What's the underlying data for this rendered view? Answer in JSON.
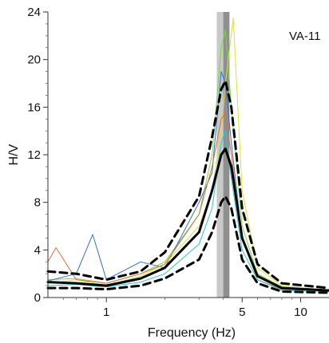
{
  "chart_data": {
    "type": "line",
    "xlabel": "Frequency (Hz)",
    "ylabel": "H/V",
    "annotation": "VA-11",
    "x_scale": "log",
    "xlim": [
      0.5,
      14
    ],
    "ylim": [
      0,
      24
    ],
    "x_ticks": [
      {
        "value": 1,
        "label": "1"
      },
      {
        "value": 5,
        "label": "5"
      },
      {
        "value": 10,
        "label": "10"
      }
    ],
    "y_ticks": [
      {
        "value": 0,
        "label": "0"
      },
      {
        "value": 4,
        "label": "4"
      },
      {
        "value": 8,
        "label": "8"
      },
      {
        "value": 12,
        "label": "12"
      },
      {
        "value": 16,
        "label": "16"
      },
      {
        "value": 20,
        "label": "20"
      },
      {
        "value": 24,
        "label": "24"
      }
    ],
    "grid": false,
    "peak_band": {
      "f0_range": [
        3.7,
        4.3
      ],
      "f0_core": [
        4.0,
        4.3
      ]
    },
    "series": [
      {
        "color": "#000000",
        "style": "solid",
        "width": 3,
        "x": [
          0.5,
          0.7,
          1.0,
          1.5,
          2.0,
          3.0,
          3.5,
          3.9,
          4.1,
          4.4,
          5.0,
          6.0,
          8.0,
          14.0
        ],
        "y": [
          1.3,
          1.2,
          1.0,
          1.6,
          2.5,
          5.5,
          9.0,
          12.0,
          12.5,
          11.0,
          5.0,
          1.8,
          0.8,
          0.6
        ]
      },
      {
        "color": "#000000",
        "style": "dashed",
        "width": 3,
        "x": [
          0.5,
          0.7,
          1.0,
          1.5,
          2.0,
          3.0,
          3.5,
          3.9,
          4.1,
          4.4,
          5.0,
          6.0,
          8.0,
          14.0
        ],
        "y": [
          2.2,
          2.0,
          1.5,
          2.2,
          3.8,
          8.5,
          13.5,
          17.5,
          18.2,
          16.0,
          7.5,
          2.8,
          1.2,
          0.8
        ]
      },
      {
        "color": "#000000",
        "style": "dashed",
        "width": 3,
        "x": [
          0.5,
          0.7,
          1.0,
          1.5,
          2.0,
          3.0,
          3.5,
          3.9,
          4.1,
          4.4,
          5.0,
          6.0,
          8.0,
          14.0
        ],
        "y": [
          0.8,
          0.8,
          0.7,
          1.0,
          1.6,
          3.2,
          5.5,
          8.0,
          8.5,
          7.5,
          3.2,
          1.2,
          0.5,
          0.4
        ]
      },
      {
        "color": "#76d93a",
        "style": "solid",
        "width": 1,
        "x": [
          0.5,
          0.7,
          1.0,
          1.5,
          2.0,
          3.0,
          3.5,
          3.9,
          4.1,
          4.4,
          5.0,
          6.0,
          8.0,
          14.0
        ],
        "y": [
          1.5,
          1.6,
          1.2,
          2.0,
          3.0,
          7.0,
          12.0,
          21.0,
          22.5,
          16.0,
          6.0,
          2.0,
          0.9,
          0.6
        ]
      },
      {
        "color": "#2f6fd6",
        "style": "solid",
        "width": 1,
        "x": [
          0.5,
          0.7,
          0.85,
          1.0,
          1.5,
          2.0,
          3.0,
          3.5,
          3.9,
          4.1,
          4.4,
          5.0,
          6.0,
          8.0,
          14.0
        ],
        "y": [
          1.4,
          2.0,
          5.3,
          1.5,
          3.0,
          2.5,
          8.0,
          10.5,
          19.0,
          18.0,
          13.0,
          5.0,
          1.8,
          0.8,
          0.5
        ]
      },
      {
        "color": "#d9e03a",
        "style": "solid",
        "width": 1,
        "x": [
          0.5,
          0.7,
          1.0,
          1.5,
          2.0,
          3.0,
          3.5,
          3.9,
          4.1,
          4.5,
          5.0,
          6.0,
          8.0,
          14.0
        ],
        "y": [
          1.2,
          1.5,
          1.0,
          1.8,
          2.8,
          6.0,
          9.0,
          14.0,
          18.0,
          23.5,
          9.0,
          2.5,
          1.0,
          0.6
        ]
      },
      {
        "color": "#e06a3a",
        "style": "solid",
        "width": 1,
        "x": [
          0.5,
          0.55,
          0.7,
          1.0,
          1.5,
          2.0,
          3.0,
          3.5,
          3.9,
          4.1,
          4.4,
          5.0,
          6.0,
          8.0,
          14.0
        ],
        "y": [
          3.0,
          4.2,
          1.5,
          1.2,
          2.0,
          2.8,
          7.0,
          11.0,
          15.0,
          15.5,
          12.0,
          5.0,
          1.5,
          0.7,
          0.5
        ]
      },
      {
        "color": "#22c9d6",
        "style": "solid",
        "width": 1,
        "x": [
          0.5,
          0.7,
          1.0,
          1.5,
          2.0,
          3.0,
          3.5,
          3.9,
          4.1,
          4.4,
          5.0,
          6.0,
          8.0,
          14.0
        ],
        "y": [
          1.0,
          1.1,
          0.9,
          1.3,
          2.0,
          4.5,
          7.5,
          13.0,
          14.0,
          10.0,
          4.0,
          1.5,
          0.6,
          0.5
        ]
      }
    ]
  }
}
